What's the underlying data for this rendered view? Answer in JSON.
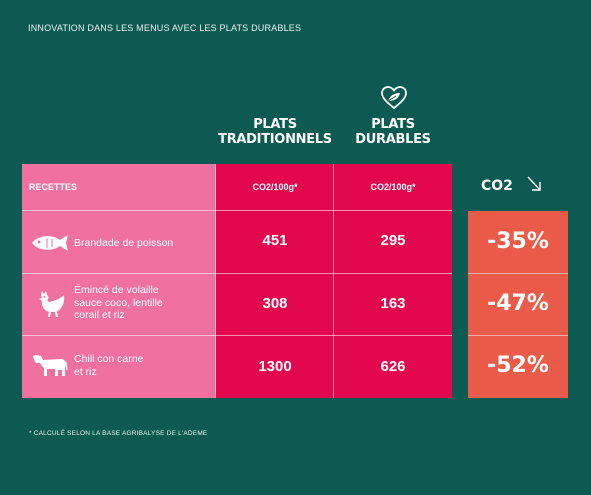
{
  "heading": "INNOVATION DANS LES MENUS AVEC LES PLATS DURABLES",
  "columns": {
    "traditionnels": {
      "line1": "PLATS",
      "line2": "TRADITIONNELS"
    },
    "durables": {
      "line1": "PLATS",
      "line2": "DURABLES",
      "icon": "heart-leaf-icon"
    }
  },
  "table": {
    "header": {
      "recettes": "RECETTES",
      "unit_trad": "CO2/100g*",
      "unit_dur": "CO2/100g*"
    },
    "rows": [
      {
        "icon": "fish-icon",
        "name_lines": [
          "Brandade de poisson"
        ],
        "traditionnel": "451",
        "durable": "295",
        "reduction": "-35%"
      },
      {
        "icon": "chicken-icon",
        "name_lines": [
          "Émincé de volaille",
          "sauce coco, lentille",
          "corail et riz"
        ],
        "traditionnel": "308",
        "durable": "163",
        "reduction": "-47%"
      },
      {
        "icon": "cow-icon",
        "name_lines": [
          "Chili con carne",
          "et riz"
        ],
        "traditionnel": "1300",
        "durable": "626",
        "reduction": "-52%"
      }
    ]
  },
  "co2_column": {
    "label": "CO2",
    "icon": "arrow-down-right-icon"
  },
  "footnote": "* CALCULÉ SELON LA BASE AGRIBALYSE DE L'ADEME",
  "colors": {
    "background": "#0c5a52",
    "pink": "#f070a0",
    "red": "#e3074f",
    "orange": "#ea5b4a"
  }
}
